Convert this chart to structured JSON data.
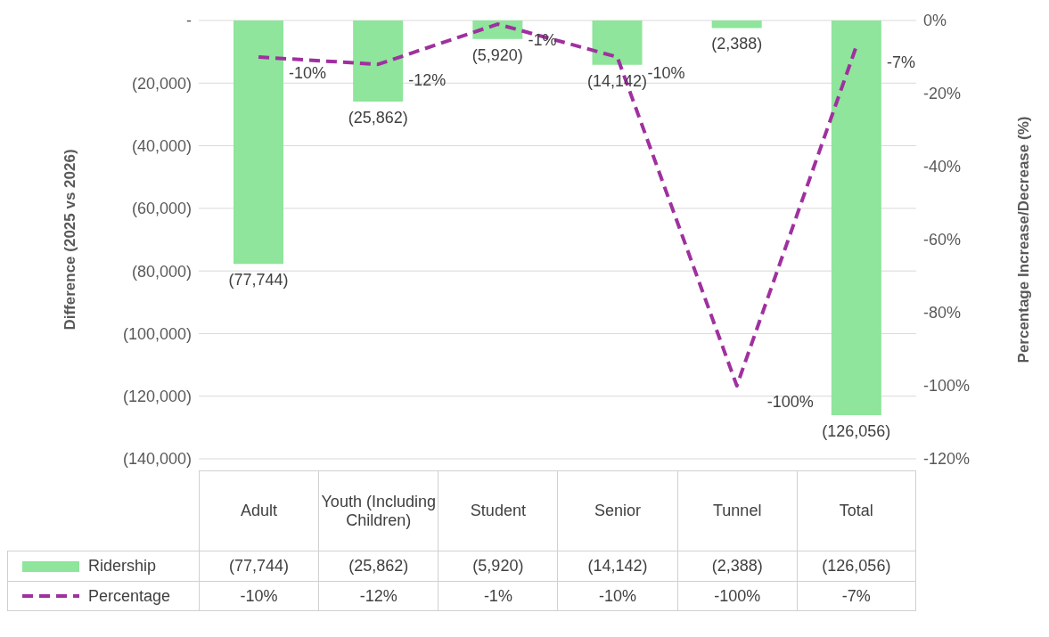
{
  "chart_data": {
    "type": "bar",
    "ylabel": "Difference (2025 vs 2026)",
    "y2label": "Percentage Increase/Decrease (%)",
    "categories": [
      "Adult",
      "Youth (Including Children)",
      "Student",
      "Senior",
      "Tunnel",
      "Total"
    ],
    "series": [
      {
        "name": "Ridership",
        "color": "#8ee59b",
        "values": [
          -77744,
          -25862,
          -5920,
          -14142,
          -2388,
          -126056
        ],
        "value_labels": [
          "(77,744)",
          "(25,862)",
          "(5,920)",
          "(14,142)",
          "(2,388)",
          "(126,056)"
        ]
      },
      {
        "name": "Percentage",
        "type": "line",
        "axis": "y2",
        "color": "#a0309f",
        "line_style": "dashed",
        "marker": "none",
        "values": [
          -10,
          -12,
          -1,
          -10,
          -100,
          -7
        ],
        "value_labels": [
          "-10%",
          "-12%",
          "-1%",
          "-10%",
          "-100%",
          "-7%"
        ]
      }
    ],
    "ylim": [
      -140000,
      0
    ],
    "yticks": [
      {
        "value": -140000,
        "label": "(140,000)"
      },
      {
        "value": -120000,
        "label": "(120,000)"
      },
      {
        "value": -100000,
        "label": "(100,000)"
      },
      {
        "value": -80000,
        "label": "(80,000)"
      },
      {
        "value": -60000,
        "label": "(60,000)"
      },
      {
        "value": -40000,
        "label": "(40,000)"
      },
      {
        "value": -20000,
        "label": "(20,000)"
      },
      {
        "value": 0,
        "label": "-"
      }
    ],
    "y2lim": [
      -120,
      0
    ],
    "y2ticks": [
      {
        "value": -120,
        "label": "-120%"
      },
      {
        "value": -100,
        "label": "-100%"
      },
      {
        "value": -80,
        "label": "-80%"
      },
      {
        "value": -60,
        "label": "-60%"
      },
      {
        "value": -40,
        "label": "-40%"
      },
      {
        "value": -20,
        "label": "-20%"
      },
      {
        "value": 0,
        "label": "0%"
      }
    ],
    "grid": "y",
    "legend": "bottom"
  }
}
